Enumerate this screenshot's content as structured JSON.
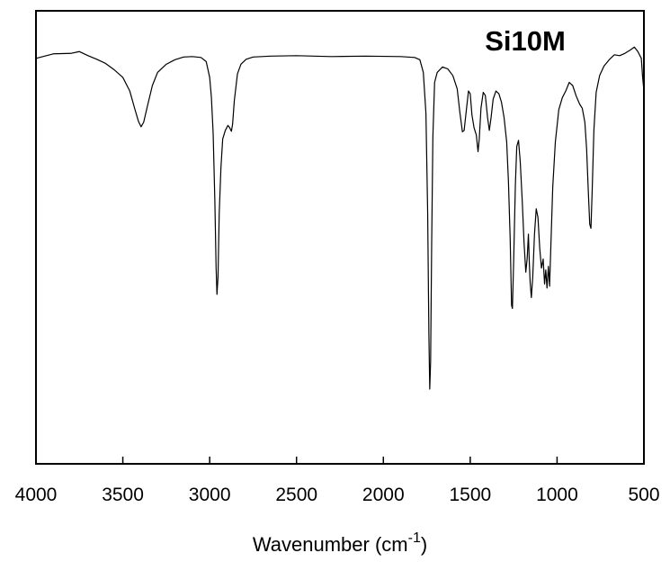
{
  "chart_data": {
    "type": "line",
    "title": "",
    "annotation": "Si10M",
    "xlabel": "Wavenumber (cm",
    "xlabel_sup": "-1",
    "xlabel_close": ")",
    "ylabel": "",
    "xlim": [
      4000,
      500
    ],
    "x_reversed": true,
    "ylim": [
      0,
      100
    ],
    "y_ticks_labeled": false,
    "grid": false,
    "legend": "none",
    "x_ticks": [
      4000,
      3500,
      3000,
      2500,
      2000,
      1500,
      1000,
      500
    ],
    "x_tick_labels": [
      "4000",
      "3500",
      "3000",
      "2500",
      "2000",
      "1500",
      "1000",
      "500"
    ],
    "series": [
      {
        "color": "#000000",
        "points": [
          [
            4000,
            89.5
          ],
          [
            3900,
            90.5
          ],
          [
            3800,
            90.6
          ],
          [
            3750,
            91.0
          ],
          [
            3700,
            90.1
          ],
          [
            3650,
            89.3
          ],
          [
            3600,
            88.4
          ],
          [
            3550,
            87.0
          ],
          [
            3500,
            85.3
          ],
          [
            3460,
            82.3
          ],
          [
            3430,
            78.2
          ],
          [
            3410,
            75.6
          ],
          [
            3395,
            74.4
          ],
          [
            3380,
            75.4
          ],
          [
            3360,
            78.7
          ],
          [
            3330,
            83.5
          ],
          [
            3300,
            86.4
          ],
          [
            3250,
            88.2
          ],
          [
            3200,
            89.2
          ],
          [
            3150,
            89.8
          ],
          [
            3100,
            89.9
          ],
          [
            3050,
            89.7
          ],
          [
            3020,
            88.8
          ],
          [
            3000,
            85.3
          ],
          [
            2990,
            80.9
          ],
          [
            2980,
            73.0
          ],
          [
            2970,
            57.7
          ],
          [
            2963,
            43.3
          ],
          [
            2958,
            37.4
          ],
          [
            2952,
            41.2
          ],
          [
            2945,
            55.4
          ],
          [
            2935,
            65.5
          ],
          [
            2925,
            71.7
          ],
          [
            2910,
            73.6
          ],
          [
            2895,
            74.7
          ],
          [
            2885,
            74.2
          ],
          [
            2875,
            73.4
          ],
          [
            2868,
            75.0
          ],
          [
            2858,
            80.2
          ],
          [
            2840,
            86.1
          ],
          [
            2820,
            88.2
          ],
          [
            2790,
            89.3
          ],
          [
            2750,
            89.8
          ],
          [
            2650,
            90.0
          ],
          [
            2500,
            90.1
          ],
          [
            2300,
            89.9
          ],
          [
            2100,
            90.0
          ],
          [
            1900,
            89.9
          ],
          [
            1820,
            89.7
          ],
          [
            1790,
            89.2
          ],
          [
            1770,
            86.4
          ],
          [
            1755,
            77.4
          ],
          [
            1745,
            55.4
          ],
          [
            1738,
            28.5
          ],
          [
            1733,
            16.5
          ],
          [
            1728,
            22.6
          ],
          [
            1722,
            48.4
          ],
          [
            1715,
            72.2
          ],
          [
            1705,
            84.2
          ],
          [
            1690,
            86.4
          ],
          [
            1660,
            87.6
          ],
          [
            1630,
            87.2
          ],
          [
            1600,
            85.7
          ],
          [
            1575,
            82.8
          ],
          [
            1560,
            77.7
          ],
          [
            1545,
            73.3
          ],
          [
            1535,
            73.6
          ],
          [
            1522,
            78.2
          ],
          [
            1510,
            82.3
          ],
          [
            1500,
            81.7
          ],
          [
            1490,
            77.0
          ],
          [
            1478,
            74.2
          ],
          [
            1465,
            72.6
          ],
          [
            1455,
            68.9
          ],
          [
            1448,
            71.7
          ],
          [
            1438,
            78.5
          ],
          [
            1425,
            82.0
          ],
          [
            1413,
            81.3
          ],
          [
            1400,
            76.4
          ],
          [
            1390,
            73.6
          ],
          [
            1380,
            76.4
          ],
          [
            1368,
            80.5
          ],
          [
            1352,
            82.3
          ],
          [
            1335,
            81.7
          ],
          [
            1320,
            79.8
          ],
          [
            1305,
            76.4
          ],
          [
            1290,
            71.0
          ],
          [
            1280,
            62.3
          ],
          [
            1270,
            49.7
          ],
          [
            1262,
            35.0
          ],
          [
            1257,
            34.3
          ],
          [
            1250,
            44.6
          ],
          [
            1240,
            61.6
          ],
          [
            1232,
            70.1
          ],
          [
            1222,
            71.4
          ],
          [
            1212,
            66.7
          ],
          [
            1200,
            57.6
          ],
          [
            1190,
            48.7
          ],
          [
            1180,
            42.3
          ],
          [
            1172,
            45.4
          ],
          [
            1165,
            50.7
          ],
          [
            1160,
            44.6
          ],
          [
            1155,
            40.1
          ],
          [
            1148,
            36.7
          ],
          [
            1140,
            41.3
          ],
          [
            1130,
            50.7
          ],
          [
            1120,
            56.3
          ],
          [
            1110,
            54.4
          ],
          [
            1100,
            47.7
          ],
          [
            1090,
            43.2
          ],
          [
            1080,
            45.2
          ],
          [
            1072,
            39.7
          ],
          [
            1065,
            42.8
          ],
          [
            1058,
            38.8
          ],
          [
            1050,
            43.6
          ],
          [
            1043,
            39.2
          ],
          [
            1035,
            49.0
          ],
          [
            1025,
            61.0
          ],
          [
            1010,
            71.0
          ],
          [
            990,
            78.2
          ],
          [
            970,
            80.8
          ],
          [
            950,
            82.3
          ],
          [
            930,
            84.2
          ],
          [
            910,
            83.5
          ],
          [
            890,
            81.2
          ],
          [
            870,
            79.4
          ],
          [
            855,
            78.5
          ],
          [
            840,
            75.4
          ],
          [
            830,
            69.6
          ],
          [
            820,
            60.0
          ],
          [
            812,
            52.9
          ],
          [
            805,
            52.0
          ],
          [
            798,
            60.1
          ],
          [
            788,
            73.6
          ],
          [
            775,
            82.0
          ],
          [
            755,
            85.7
          ],
          [
            730,
            87.8
          ],
          [
            700,
            89.2
          ],
          [
            670,
            90.3
          ],
          [
            640,
            90.1
          ],
          [
            610,
            90.6
          ],
          [
            580,
            91.3
          ],
          [
            555,
            92.0
          ],
          [
            535,
            91.0
          ],
          [
            515,
            89.5
          ],
          [
            508,
            85.6
          ],
          [
            500,
            82.3
          ]
        ]
      }
    ]
  }
}
